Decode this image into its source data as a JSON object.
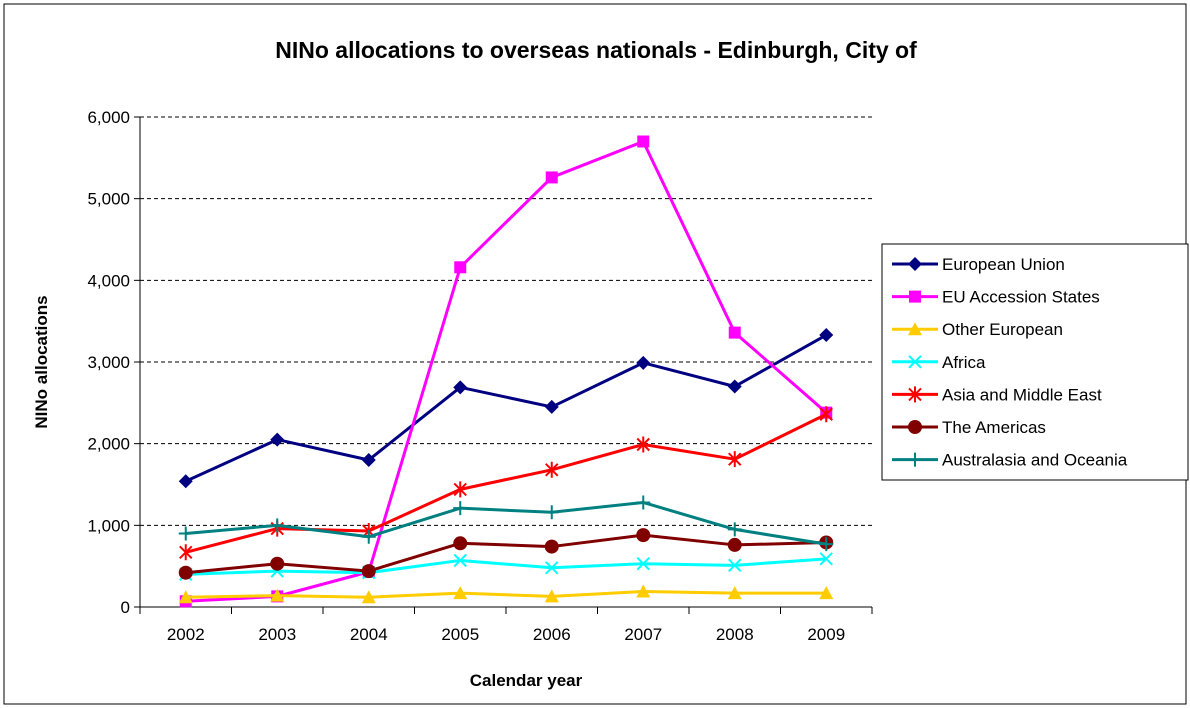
{
  "chart_data": {
    "type": "line",
    "title": "NINo allocations to overseas nationals  - Edinburgh, City of",
    "xlabel": "Calendar year",
    "ylabel": "NINo allocations",
    "categories": [
      "2002",
      "2003",
      "2004",
      "2005",
      "2006",
      "2007",
      "2008",
      "2009"
    ],
    "ylim": [
      0,
      6000
    ],
    "yticks": [
      0,
      1000,
      2000,
      3000,
      4000,
      5000,
      6000
    ],
    "ytick_labels": [
      "0",
      "1,000",
      "2,000",
      "3,000",
      "4,000",
      "5,000",
      "6,000"
    ],
    "grid": "horizontal dashed",
    "legend_position": "right",
    "series": [
      {
        "name": "European Union",
        "color": "#000080",
        "marker": "diamond",
        "values": [
          1540,
          2050,
          1800,
          2690,
          2450,
          2990,
          2700,
          3330
        ]
      },
      {
        "name": "EU Accession States",
        "color": "#ff00ff",
        "marker": "square",
        "values": [
          70,
          130,
          430,
          4160,
          5260,
          5700,
          3360,
          2380
        ]
      },
      {
        "name": "Other European",
        "color": "#ffcc00",
        "marker": "triangle",
        "values": [
          120,
          140,
          120,
          170,
          130,
          190,
          170,
          170
        ]
      },
      {
        "name": "Africa",
        "color": "#00ffff",
        "marker": "x",
        "values": [
          400,
          440,
          420,
          570,
          480,
          530,
          510,
          590
        ]
      },
      {
        "name": "Asia and Middle East",
        "color": "#ff0000",
        "marker": "star",
        "values": [
          670,
          960,
          930,
          1440,
          1680,
          1990,
          1810,
          2360
        ]
      },
      {
        "name": "The Americas",
        "color": "#800000",
        "marker": "circle",
        "values": [
          420,
          530,
          440,
          780,
          740,
          880,
          760,
          790
        ]
      },
      {
        "name": "Australasia and Oceania",
        "color": "#008080",
        "marker": "plus",
        "values": [
          900,
          1000,
          860,
          1210,
          1160,
          1280,
          950,
          770
        ]
      }
    ]
  }
}
